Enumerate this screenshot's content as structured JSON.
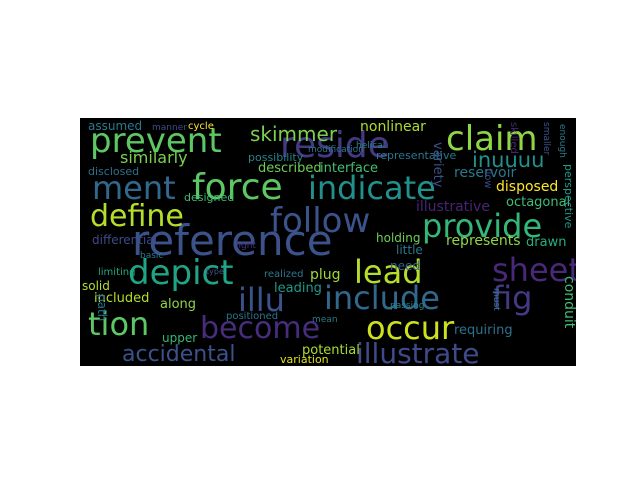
{
  "wordcloud": {
    "background": "#000000",
    "words": [
      {
        "text": "reference",
        "color": "#3b528b"
      },
      {
        "text": "force",
        "color": "#5dc863"
      },
      {
        "text": "prevent",
        "color": "#5dc863"
      },
      {
        "text": "reside",
        "color": "#443983"
      },
      {
        "text": "claim",
        "color": "#8fd744"
      },
      {
        "text": "ment",
        "color": "#31688e"
      },
      {
        "text": "indicate",
        "color": "#21918c"
      },
      {
        "text": "define",
        "color": "#b5de2b"
      },
      {
        "text": "follow",
        "color": "#3b528b"
      },
      {
        "text": "provide",
        "color": "#35b779"
      },
      {
        "text": "depict",
        "color": "#20a486"
      },
      {
        "text": "lead",
        "color": "#b5de2b"
      },
      {
        "text": "sheet",
        "color": "#482878"
      },
      {
        "text": "include",
        "color": "#31688e"
      },
      {
        "text": "fig",
        "color": "#443983"
      },
      {
        "text": "illu",
        "color": "#3b528b"
      },
      {
        "text": "tion",
        "color": "#5dc863"
      },
      {
        "text": "become",
        "color": "#472d7b"
      },
      {
        "text": "occur",
        "color": "#cde11d"
      },
      {
        "text": "illustrate",
        "color": "#3e4a89"
      },
      {
        "text": "accidental",
        "color": "#3b528b"
      },
      {
        "text": "inuuuu",
        "color": "#21918c"
      },
      {
        "text": "skimmer",
        "color": "#7ad151"
      },
      {
        "text": "similarly",
        "color": "#7ad151"
      },
      {
        "text": "assumed",
        "color": "#2a788e"
      },
      {
        "text": "nonlinear",
        "color": "#addc30"
      },
      {
        "text": "described",
        "color": "#6ece58"
      },
      {
        "text": "interface",
        "color": "#44bf70"
      },
      {
        "text": "reservoir",
        "color": "#2a788e"
      },
      {
        "text": "disposed",
        "color": "#fde725"
      },
      {
        "text": "illustrative",
        "color": "#482475"
      },
      {
        "text": "octagonal",
        "color": "#3fbc73"
      },
      {
        "text": "represents",
        "color": "#8fd744"
      },
      {
        "text": "drawn",
        "color": "#27ad81"
      },
      {
        "text": "holding",
        "color": "#6ece58"
      },
      {
        "text": "differential",
        "color": "#3e4a89"
      },
      {
        "text": "plug",
        "color": "#9fda3a"
      },
      {
        "text": "leading",
        "color": "#1f998a"
      },
      {
        "text": "little",
        "color": "#2a788e"
      },
      {
        "text": "need",
        "color": "#35608d"
      },
      {
        "text": "requiring",
        "color": "#2c728e"
      },
      {
        "text": "potential",
        "color": "#addc30"
      },
      {
        "text": "variation",
        "color": "#dde318"
      },
      {
        "text": "included",
        "color": "#3fbc73"
      },
      {
        "text": "along",
        "color": "#b5de2b"
      },
      {
        "text": "upper",
        "color": "#8fd744"
      },
      {
        "text": "solid",
        "color": "#35b779"
      },
      {
        "text": "limiting",
        "color": "#b5de2b"
      },
      {
        "text": "realized",
        "color": "#22a884"
      },
      {
        "text": "disclosed",
        "color": "#2c728e"
      },
      {
        "text": "designed",
        "color": "#2a788e"
      },
      {
        "text": "possibility",
        "color": "#2c728e"
      },
      {
        "text": "representative",
        "color": "#3fbc73"
      },
      {
        "text": "cycle",
        "color": "#25848e"
      },
      {
        "text": "manner",
        "color": "#2a788e"
      },
      {
        "text": "passing",
        "color": "#3b528b"
      },
      {
        "text": "mean",
        "color": "#fde725"
      },
      {
        "text": "helical",
        "color": "#3e4a89"
      },
      {
        "text": "modification",
        "color": "#25848e"
      },
      {
        "text": "light",
        "color": "#2a788e"
      },
      {
        "text": "type",
        "color": "#482475"
      },
      {
        "text": "positioned",
        "color": "#3b528b"
      },
      {
        "text": "basic",
        "color": "#2a788e"
      },
      {
        "text": "variety",
        "color": "#1f998a"
      },
      {
        "text": "conduit",
        "color": "#3e4a89"
      },
      {
        "text": "path",
        "color": "#2a788e"
      },
      {
        "text": "skilled",
        "color": "#26828e"
      },
      {
        "text": "smaller",
        "color": "#2a788e"
      },
      {
        "text": "enough",
        "color": "#472d7b"
      },
      {
        "text": "perspective",
        "color": "#3b528b"
      },
      {
        "text": "flow",
        "color": "#2c728e"
      },
      {
        "text": "must",
        "color": "#2a788e"
      }
    ]
  }
}
